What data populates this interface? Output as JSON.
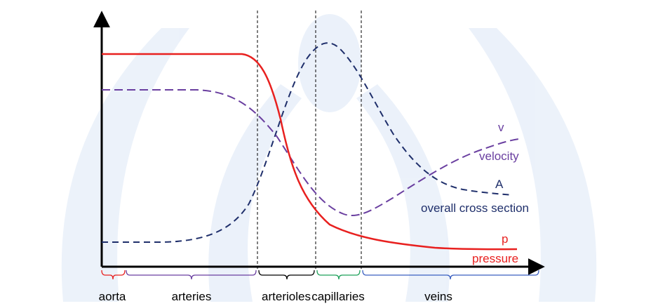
{
  "curves": {
    "velocity": {
      "symbol": "v",
      "label": "velocity"
    },
    "cross_section": {
      "symbol": "A",
      "label": "overall cross section"
    },
    "pressure": {
      "symbol": "p",
      "label": "pressure"
    }
  },
  "regions": [
    "aorta",
    "arteries",
    "arterioles",
    "capillaries",
    "veins"
  ]
}
